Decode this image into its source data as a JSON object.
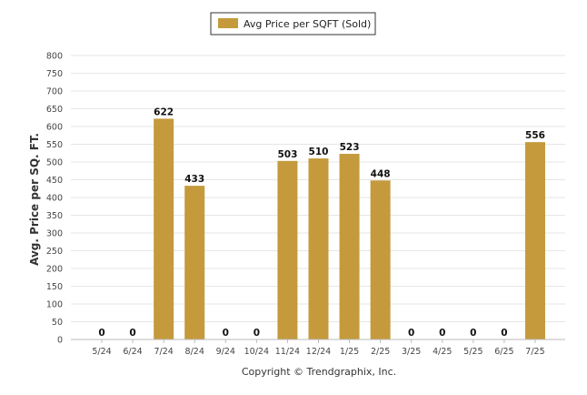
{
  "chart_data": {
    "type": "bar",
    "categories": [
      "5/24",
      "6/24",
      "7/24",
      "8/24",
      "9/24",
      "10/24",
      "11/24",
      "12/24",
      "1/25",
      "2/25",
      "3/25",
      "4/25",
      "5/25",
      "6/25",
      "7/25"
    ],
    "series": [
      {
        "name": "Avg Price per SQFT (Sold)",
        "values": [
          0,
          0,
          622,
          433,
          0,
          0,
          503,
          510,
          523,
          448,
          0,
          0,
          0,
          0,
          556
        ],
        "color": "#c49a3c"
      }
    ],
    "data_labels": [
      "0",
      "0",
      "622",
      "433",
      "0",
      "0",
      "503",
      "510",
      "523",
      "448",
      "0",
      "0",
      "0",
      "0",
      "556"
    ],
    "ylabel": "Avg. Price per SQ. FT.",
    "xlabel": "",
    "ylim": [
      0,
      800
    ],
    "yticks": [
      0,
      50,
      100,
      150,
      200,
      250,
      300,
      350,
      400,
      450,
      500,
      550,
      600,
      650,
      700,
      750,
      800
    ],
    "grid": true,
    "legend_position": "top-center",
    "colors": {
      "bar": "#c49a3c",
      "grid": "#e6e6e6",
      "axis": "#bbbbbb",
      "legend_border": "#333333"
    }
  },
  "footer": {
    "copyright": "Copyright © Trendgraphix, Inc."
  }
}
